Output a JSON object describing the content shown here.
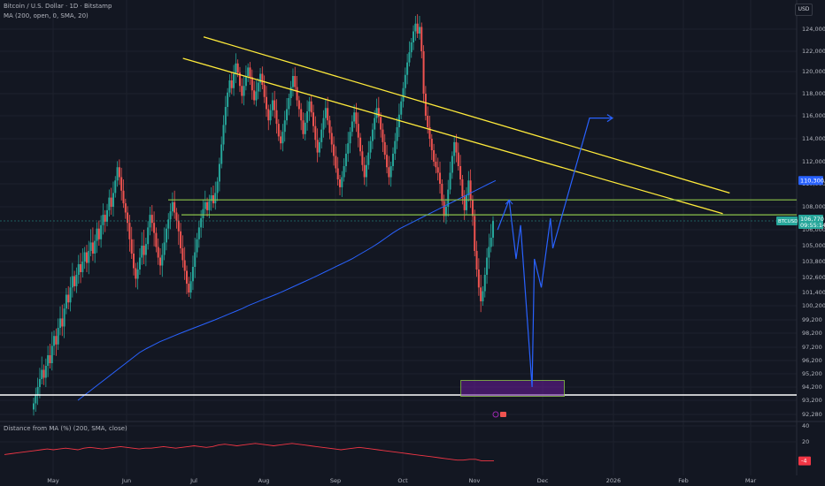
{
  "header": {
    "symbol_line": "Bitcoin / U.S. Dollar · 1D · Bitstamp",
    "indicator_line": "MA (200, open, 0, SMA, 20)",
    "currency_button": "USD"
  },
  "price_tag": {
    "symbol": "BTCUSD",
    "price": "106,770",
    "countdown": "09:55:14"
  },
  "ma_tag": "110,300",
  "oscillator": {
    "label": "Distance from MA (%) (200, SMA, close)",
    "last_value": "-4"
  },
  "colors": {
    "background": "#131722",
    "up": "#26a69a",
    "down": "#ef5350",
    "ma": "#2962ff",
    "trendline": "#ffeb3b",
    "support": "#8bc34a",
    "forecast": "#2962ff",
    "zone": "#6a1b9a",
    "oscillator": "#f23645"
  },
  "chart_data": [
    {
      "type": "candlestick",
      "title": "Bitcoin / U.S. Dollar · 1D · Bitstamp",
      "y_ticks": [
        "124,000",
        "122,000",
        "120,000",
        "118,000",
        "116,000",
        "114,000",
        "112,000",
        "110,000",
        "108,000",
        "106,000",
        "105,000",
        "103,800",
        "102,600",
        "101,400",
        "100,200",
        "99,200",
        "98,200",
        "97,200",
        "96,200",
        "95,200",
        "94,200",
        "93,200",
        "92,280"
      ],
      "x_ticks": [
        "May",
        "Jun",
        "Jul",
        "Aug",
        "Sep",
        "Oct",
        "Nov",
        "Dec",
        "2026",
        "Feb",
        "Mar"
      ],
      "closes": [
        93000,
        93600,
        94200,
        94800,
        95500,
        94900,
        95800,
        96600,
        96000,
        97300,
        98000,
        97400,
        98600,
        99300,
        98700,
        100000,
        101200,
        100500,
        101800,
        102700,
        101900,
        102800,
        103600,
        103000,
        103800,
        104500,
        103700,
        104600,
        105200,
        104400,
        105300,
        106100,
        105400,
        106400,
        107300,
        106700,
        107700,
        108800,
        108000,
        109200,
        110300,
        111500,
        110600,
        109400,
        108300,
        107500,
        106600,
        105400,
        104400,
        103300,
        102500,
        103200,
        104100,
        105000,
        104300,
        105100,
        106200,
        107300,
        106600,
        105800,
        104900,
        104100,
        103500,
        104300,
        105200,
        106100,
        106900,
        107600,
        108400,
        107500,
        106800,
        105900,
        104800,
        103900,
        103100,
        102100,
        101400,
        102300,
        103400,
        104500,
        105400,
        106200,
        107000,
        107800,
        108400,
        107700,
        108500,
        109000,
        108300,
        109200,
        110200,
        111800,
        113500,
        115200,
        116800,
        118100,
        119200,
        118500,
        119800,
        120800,
        119900,
        118700,
        117800,
        118700,
        119600,
        120400,
        119500,
        118300,
        117400,
        118200,
        119000,
        119800,
        118800,
        117700,
        116600,
        115600,
        116500,
        117400,
        116500,
        115300,
        114200,
        113600,
        114600,
        115600,
        116600,
        117600,
        118600,
        119600,
        118600,
        117400,
        116600,
        115600,
        114400,
        115400,
        116400,
        117300,
        116300,
        115100,
        113900,
        112800,
        113700,
        114800,
        115800,
        116700,
        115600,
        114500,
        113500,
        112500,
        111400,
        110400,
        109700,
        110600,
        111600,
        112700,
        113600,
        114600,
        115500,
        116300,
        115300,
        114100,
        112900,
        111700,
        110600,
        111700,
        112800,
        113800,
        114800,
        115800,
        116700,
        115900,
        114800,
        113700,
        112600,
        111500,
        110600,
        111600,
        112700,
        113800,
        115000,
        116100,
        117300,
        118500,
        119700,
        120900,
        121900,
        122800,
        123800,
        124500,
        123600,
        124200,
        122000,
        118000,
        116000,
        115000,
        114000,
        113000,
        112000,
        111500,
        111000,
        110000,
        108500,
        107200,
        108000,
        109500,
        111000,
        112500,
        113700,
        112800,
        111600,
        110400,
        108900,
        107700,
        109000,
        110300,
        108600,
        107200,
        104600,
        103200,
        101800,
        100600,
        101500,
        102800,
        104100,
        104900,
        105500,
        106770
      ],
      "ma200": [
        93200,
        93600,
        94000,
        94400,
        94800,
        95200,
        95600,
        96000,
        96400,
        96800,
        97100,
        97350,
        97600,
        97800,
        98000,
        98200,
        98400,
        98600,
        98800,
        99000,
        99200,
        99400,
        99600,
        99800,
        100000,
        100250,
        100500,
        100750,
        101000,
        101250,
        101500,
        101750,
        102000,
        102250,
        102500,
        102750,
        103000,
        103250,
        103500,
        103750,
        104000,
        104300,
        104600,
        104900,
        105200,
        105500,
        105800,
        106100,
        106400,
        106700,
        107000,
        107300,
        107600,
        107900,
        108200,
        108500,
        108800,
        109100,
        109400,
        109700,
        110000,
        110300
      ],
      "trendlines": [
        {
          "from": {
            "date": "2025-07-06",
            "price": 123300
          },
          "to": {
            "date": "2026-02-20",
            "price": 109200
          }
        },
        {
          "from": {
            "date": "2025-06-27",
            "price": 121300
          },
          "to": {
            "date": "2026-02-17",
            "price": 107400
          }
        }
      ],
      "support_lines": [
        108600,
        107300,
        93600
      ],
      "forecast_zone": {
        "from": "2025-10-26",
        "to": "2025-12-10",
        "top": 94700,
        "bottom": 93500
      },
      "forecast_path": [
        {
          "date": "2025-11-11",
          "price": 106000
        },
        {
          "date": "2025-11-16",
          "price": 108600
        },
        {
          "date": "2025-11-19",
          "price": 104000
        },
        {
          "date": "2025-11-21",
          "price": 106400
        },
        {
          "date": "2025-11-26",
          "price": 94200
        },
        {
          "date": "2025-11-27",
          "price": 104000
        },
        {
          "date": "2025-11-30",
          "price": 101800
        },
        {
          "date": "2025-12-04",
          "price": 107000
        },
        {
          "date": "2025-12-05",
          "price": 104800
        },
        {
          "date": "2025-12-21",
          "price": 115800
        },
        {
          "date": "2025-12-31",
          "price": 115800
        }
      ]
    },
    {
      "type": "line",
      "title": "Distance from MA (%) (200, SMA, close)",
      "y_ticks": [
        "40",
        "20"
      ],
      "last_value": "-4",
      "values": [
        4,
        5,
        6,
        7,
        8,
        9,
        10,
        11,
        10,
        11,
        12,
        11,
        10,
        12,
        13,
        12,
        11,
        12,
        13,
        14,
        13,
        12,
        11,
        12,
        12,
        13,
        14,
        13,
        12,
        13,
        14,
        15,
        14,
        13,
        14,
        16,
        17,
        16,
        15,
        16,
        17,
        18,
        17,
        16,
        15,
        16,
        17,
        18,
        17,
        16,
        15,
        14,
        13,
        12,
        11,
        10,
        11,
        12,
        13,
        12,
        11,
        10,
        9,
        8,
        7,
        6,
        5,
        4,
        3,
        2,
        1,
        0,
        -1,
        -2,
        -3,
        -3,
        -2,
        -2,
        -4,
        -4,
        -4
      ]
    }
  ]
}
